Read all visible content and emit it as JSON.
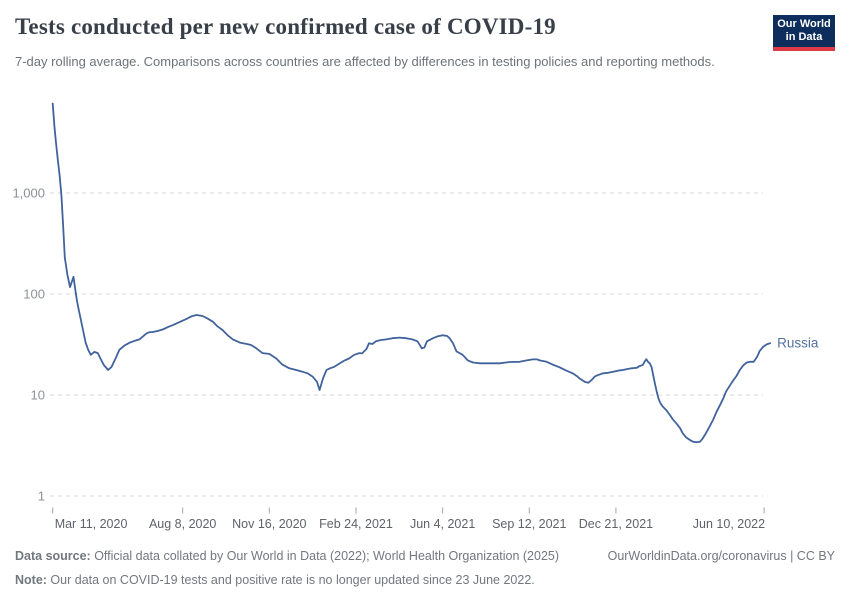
{
  "header": {
    "title": "Tests conducted per new confirmed case of COVID-19",
    "subtitle": "7-day rolling average. Comparisons across countries are affected by differences in testing policies and reporting methods.",
    "logo": {
      "line1": "Our World",
      "line2": "in Data"
    }
  },
  "footer": {
    "data_source_label": "Data source:",
    "data_source_text": " Official data collated by Our World in Data (2022); World Health Organization (2025)",
    "link": "OurWorldinData.org/coronavirus | CC BY",
    "note_label": "Note:",
    "note_text": " Our data on COVID-19 tests and positive rate is no longer updated since 23 June 2022."
  },
  "colors": {
    "line": "#41639c",
    "series_label": "#54719e",
    "grid": "#d7d7d7",
    "axis_text": "#8d9297",
    "x_axis_text": "#5f646a",
    "tick_mark": "#a1a6ab",
    "logo_bg": "#0d2e5c",
    "logo_red": "#dd3a47"
  },
  "chart_data": {
    "type": "line",
    "title": "Tests conducted per new confirmed case of COVID-19",
    "y_scale": "log",
    "ylim": [
      1,
      8000
    ],
    "grid": "horizontal-dashed",
    "legend_position": "end-of-line",
    "y_ticks": [
      1000,
      100,
      10,
      1
    ],
    "y_tick_labels": [
      "1,000",
      "100",
      "10",
      "1"
    ],
    "x_ticks": [
      {
        "date": "2020-03-11",
        "label": "Mar 11, 2020",
        "align": "start"
      },
      {
        "date": "2020-08-08",
        "label": "Aug 8, 2020",
        "align": "middle"
      },
      {
        "date": "2020-11-16",
        "label": "Nov 16, 2020",
        "align": "middle"
      },
      {
        "date": "2021-02-24",
        "label": "Feb 24, 2021",
        "align": "middle"
      },
      {
        "date": "2021-06-04",
        "label": "Jun 4, 2021",
        "align": "middle"
      },
      {
        "date": "2021-09-12",
        "label": "Sep 12, 2021",
        "align": "middle"
      },
      {
        "date": "2021-12-21",
        "label": "Dec 21, 2021",
        "align": "middle"
      },
      {
        "date": "2022-06-10",
        "label": "Jun 10, 2022",
        "align": "end"
      }
    ],
    "series": [
      {
        "name": "Russia",
        "points": [
          [
            "2020-03-11",
            7700
          ],
          [
            "2020-03-13",
            4600
          ],
          [
            "2020-03-15",
            3000
          ],
          [
            "2020-03-17",
            2100
          ],
          [
            "2020-03-19",
            1500
          ],
          [
            "2020-03-21",
            950
          ],
          [
            "2020-03-23",
            480
          ],
          [
            "2020-03-25",
            230
          ],
          [
            "2020-03-28",
            155
          ],
          [
            "2020-03-31",
            117
          ],
          [
            "2020-04-02",
            132
          ],
          [
            "2020-04-04",
            148
          ],
          [
            "2020-04-06",
            112
          ],
          [
            "2020-04-08",
            85
          ],
          [
            "2020-04-10",
            70
          ],
          [
            "2020-04-13",
            53
          ],
          [
            "2020-04-15",
            44
          ],
          [
            "2020-04-18",
            33
          ],
          [
            "2020-04-21",
            28
          ],
          [
            "2020-04-24",
            25
          ],
          [
            "2020-04-28",
            26.7
          ],
          [
            "2020-05-02",
            26
          ],
          [
            "2020-05-06",
            22.2
          ],
          [
            "2020-05-09",
            19.8
          ],
          [
            "2020-05-14",
            17.7
          ],
          [
            "2020-05-18",
            19
          ],
          [
            "2020-05-23",
            23.5
          ],
          [
            "2020-05-27",
            28
          ],
          [
            "2020-06-02",
            31
          ],
          [
            "2020-06-08",
            33
          ],
          [
            "2020-06-14",
            34.5
          ],
          [
            "2020-06-19",
            35.5
          ],
          [
            "2020-06-27",
            40.5
          ],
          [
            "2020-07-01",
            42
          ],
          [
            "2020-07-04",
            42
          ],
          [
            "2020-07-10",
            43
          ],
          [
            "2020-07-16",
            44.5
          ],
          [
            "2020-07-22",
            47
          ],
          [
            "2020-07-27",
            49
          ],
          [
            "2020-08-05",
            53
          ],
          [
            "2020-08-13",
            57
          ],
          [
            "2020-08-18",
            60
          ],
          [
            "2020-08-24",
            62
          ],
          [
            "2020-08-31",
            60.5
          ],
          [
            "2020-09-06",
            57
          ],
          [
            "2020-09-12",
            53
          ],
          [
            "2020-09-17",
            48
          ],
          [
            "2020-09-23",
            44
          ],
          [
            "2020-09-29",
            39
          ],
          [
            "2020-10-05",
            35.5
          ],
          [
            "2020-10-13",
            33
          ],
          [
            "2020-10-21",
            32
          ],
          [
            "2020-10-26",
            31.3
          ],
          [
            "2020-11-01",
            29
          ],
          [
            "2020-11-08",
            26
          ],
          [
            "2020-11-16",
            25.5
          ],
          [
            "2020-11-24",
            23
          ],
          [
            "2020-12-01",
            20
          ],
          [
            "2020-12-09",
            18.4
          ],
          [
            "2020-12-17",
            17.7
          ],
          [
            "2020-12-24",
            17
          ],
          [
            "2020-12-30",
            16.4
          ],
          [
            "2021-01-05",
            15.2
          ],
          [
            "2021-01-10",
            13.5
          ],
          [
            "2021-01-13",
            11.2
          ],
          [
            "2021-01-17",
            14.6
          ],
          [
            "2021-01-21",
            17.7
          ],
          [
            "2021-01-25",
            18.4
          ],
          [
            "2021-01-30",
            19
          ],
          [
            "2021-02-05",
            20.5
          ],
          [
            "2021-02-11",
            22
          ],
          [
            "2021-02-16",
            23
          ],
          [
            "2021-02-22",
            25
          ],
          [
            "2021-02-28",
            26
          ],
          [
            "2021-03-03",
            25.8
          ],
          [
            "2021-03-08",
            28.5
          ],
          [
            "2021-03-11",
            32.5
          ],
          [
            "2021-03-15",
            32
          ],
          [
            "2021-03-19",
            34
          ],
          [
            "2021-03-25",
            35
          ],
          [
            "2021-03-31",
            35.5
          ],
          [
            "2021-04-07",
            36.5
          ],
          [
            "2021-04-15",
            37
          ],
          [
            "2021-04-23",
            36.5
          ],
          [
            "2021-04-30",
            35.5
          ],
          [
            "2021-05-06",
            34
          ],
          [
            "2021-05-11",
            29
          ],
          [
            "2021-05-14",
            29.5
          ],
          [
            "2021-05-17",
            34
          ],
          [
            "2021-05-24",
            36.5
          ],
          [
            "2021-05-29",
            38
          ],
          [
            "2021-06-04",
            39
          ],
          [
            "2021-06-09",
            38.5
          ],
          [
            "2021-06-12",
            36.5
          ],
          [
            "2021-06-16",
            32.5
          ],
          [
            "2021-06-20",
            27
          ],
          [
            "2021-06-27",
            25
          ],
          [
            "2021-07-03",
            22
          ],
          [
            "2021-07-09",
            21
          ],
          [
            "2021-07-17",
            20.6
          ],
          [
            "2021-07-29",
            20.6
          ],
          [
            "2021-08-09",
            20.6
          ],
          [
            "2021-08-21",
            21.2
          ],
          [
            "2021-09-01",
            21.3
          ],
          [
            "2021-09-09",
            22
          ],
          [
            "2021-09-16",
            22.5
          ],
          [
            "2021-09-21",
            22.5
          ],
          [
            "2021-09-24",
            22
          ],
          [
            "2021-10-02",
            21.3
          ],
          [
            "2021-10-09",
            20
          ],
          [
            "2021-10-17",
            18.8
          ],
          [
            "2021-10-25",
            17.4
          ],
          [
            "2021-11-01",
            16.4
          ],
          [
            "2021-11-06",
            15.4
          ],
          [
            "2021-11-09",
            14.6
          ],
          [
            "2021-11-15",
            13.5
          ],
          [
            "2021-11-19",
            13.2
          ],
          [
            "2021-11-23",
            14.1
          ],
          [
            "2021-11-27",
            15.3
          ],
          [
            "2021-11-30",
            15.7
          ],
          [
            "2021-12-06",
            16.4
          ],
          [
            "2021-12-12",
            16.6
          ],
          [
            "2021-12-18",
            17
          ],
          [
            "2021-12-23",
            17.4
          ],
          [
            "2021-12-29",
            17.7
          ],
          [
            "2022-01-02",
            18
          ],
          [
            "2022-01-08",
            18.4
          ],
          [
            "2022-01-14",
            18.6
          ],
          [
            "2022-01-17",
            19.3
          ],
          [
            "2022-01-21",
            19.8
          ],
          [
            "2022-01-23",
            21.3
          ],
          [
            "2022-01-25",
            22.6
          ],
          [
            "2022-01-27",
            21.3
          ],
          [
            "2022-01-29",
            20.6
          ],
          [
            "2022-01-31",
            19
          ],
          [
            "2022-02-02",
            15.7
          ],
          [
            "2022-02-04",
            13
          ],
          [
            "2022-02-06",
            10.8
          ],
          [
            "2022-02-08",
            9.3
          ],
          [
            "2022-02-10",
            8.4
          ],
          [
            "2022-02-12",
            7.9
          ],
          [
            "2022-02-13",
            7.7
          ],
          [
            "2022-02-17",
            7.1
          ],
          [
            "2022-02-21",
            6.4
          ],
          [
            "2022-02-25",
            5.7
          ],
          [
            "2022-03-01",
            5.2
          ],
          [
            "2022-03-05",
            4.7
          ],
          [
            "2022-03-08",
            4.2
          ],
          [
            "2022-03-12",
            3.8
          ],
          [
            "2022-03-16",
            3.6
          ],
          [
            "2022-03-20",
            3.45
          ],
          [
            "2022-03-24",
            3.4
          ],
          [
            "2022-03-28",
            3.45
          ],
          [
            "2022-03-31",
            3.7
          ],
          [
            "2022-04-04",
            4.2
          ],
          [
            "2022-04-08",
            4.85
          ],
          [
            "2022-04-12",
            5.65
          ],
          [
            "2022-04-16",
            6.75
          ],
          [
            "2022-04-20",
            7.9
          ],
          [
            "2022-04-24",
            9.3
          ],
          [
            "2022-04-27",
            10.8
          ],
          [
            "2022-05-01",
            12.2
          ],
          [
            "2022-05-05",
            13.8
          ],
          [
            "2022-05-09",
            15.4
          ],
          [
            "2022-05-13",
            17.7
          ],
          [
            "2022-05-17",
            19.7
          ],
          [
            "2022-05-21",
            21
          ],
          [
            "2022-05-25",
            21.3
          ],
          [
            "2022-05-29",
            21.3
          ],
          [
            "2022-06-02",
            24
          ],
          [
            "2022-06-05",
            27.4
          ],
          [
            "2022-06-09",
            30
          ],
          [
            "2022-06-13",
            31.7
          ],
          [
            "2022-06-17",
            32.6
          ]
        ]
      }
    ]
  }
}
